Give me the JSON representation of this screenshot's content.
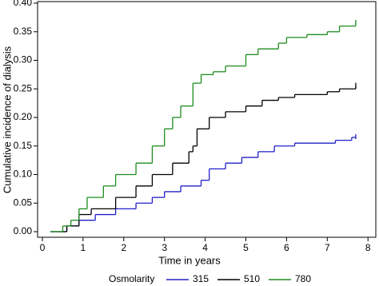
{
  "chart_data": {
    "type": "step",
    "xlabel": "Time in years",
    "ylabel": "Cumulative incidence of dialysis",
    "legend_title": "Osmolarity",
    "legend": "bottom",
    "xlim": [
      0,
      8.2
    ],
    "ylim": [
      0,
      0.4
    ],
    "xticks": [
      0,
      1,
      2,
      3,
      4,
      5,
      6,
      7,
      8
    ],
    "yticks": [
      {
        "value": 0,
        "label": "0.00"
      },
      {
        "value": 0.05,
        "label": "0.05"
      },
      {
        "value": 0.1,
        "label": "0.10"
      },
      {
        "value": 0.15,
        "label": "0.15"
      },
      {
        "value": 0.2,
        "label": "0.20"
      },
      {
        "value": 0.25,
        "label": "0.25"
      },
      {
        "value": 0.3,
        "label": "0.30"
      },
      {
        "value": 0.35,
        "label": "0.35"
      },
      {
        "value": 0.4,
        "label": "0.40"
      }
    ],
    "series": [
      {
        "name": "315",
        "color": "#2020c8",
        "x": [
          0.2,
          0.6,
          0.9,
          1.3,
          1.8,
          2.3,
          2.7,
          3.0,
          3.4,
          3.9,
          4.1,
          4.5,
          4.9,
          5.3,
          5.7,
          6.2,
          7.2,
          7.6,
          7.7
        ],
        "values": [
          0,
          0.01,
          0.02,
          0.03,
          0.04,
          0.05,
          0.06,
          0.07,
          0.08,
          0.09,
          0.11,
          0.12,
          0.13,
          0.14,
          0.15,
          0.155,
          0.16,
          0.165,
          0.165
        ]
      },
      {
        "name": "510",
        "color": "#000000",
        "x": [
          0.2,
          0.6,
          0.9,
          1.2,
          1.8,
          2.3,
          2.7,
          3.2,
          3.6,
          3.7,
          3.8,
          4.1,
          4.5,
          5.0,
          5.4,
          5.8,
          6.2,
          7.0,
          7.3,
          7.7
        ],
        "values": [
          0,
          0.01,
          0.03,
          0.04,
          0.06,
          0.08,
          0.1,
          0.12,
          0.14,
          0.15,
          0.18,
          0.2,
          0.21,
          0.22,
          0.23,
          0.235,
          0.24,
          0.245,
          0.25,
          0.255
        ]
      },
      {
        "name": "780",
        "color": "#1e8c1e",
        "x": [
          0.2,
          0.5,
          0.7,
          0.9,
          1.1,
          1.5,
          1.8,
          2.3,
          2.7,
          3.0,
          3.2,
          3.4,
          3.7,
          3.9,
          4.2,
          4.5,
          5.0,
          5.3,
          5.8,
          6.0,
          6.5,
          7.0,
          7.3,
          7.7
        ],
        "values": [
          0,
          0.01,
          0.02,
          0.04,
          0.06,
          0.08,
          0.1,
          0.12,
          0.15,
          0.18,
          0.2,
          0.22,
          0.26,
          0.275,
          0.28,
          0.29,
          0.31,
          0.32,
          0.33,
          0.34,
          0.345,
          0.35,
          0.36,
          0.365
        ]
      }
    ]
  }
}
